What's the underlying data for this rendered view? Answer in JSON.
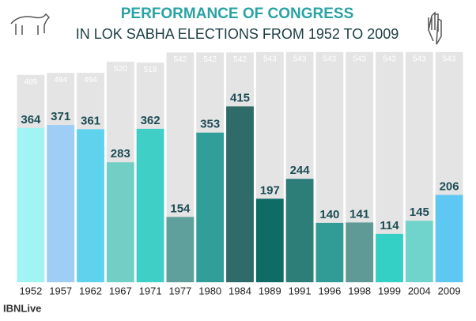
{
  "chart_data": {
    "type": "bar",
    "title": "PERFORMANCE OF CONGRESS",
    "subtitle": "IN LOK SABHA ELECTIONS FROM 1952 TO 2009",
    "categories": [
      "1952",
      "1957",
      "1962",
      "1967",
      "1971",
      "1977",
      "1980",
      "1984",
      "1989",
      "1991",
      "1996",
      "1998",
      "1999",
      "2004",
      "2009"
    ],
    "values": [
      364,
      371,
      361,
      283,
      362,
      154,
      353,
      415,
      197,
      244,
      140,
      141,
      114,
      145,
      206
    ],
    "totals": [
      489,
      494,
      494,
      520,
      518,
      542,
      542,
      542,
      543,
      543,
      543,
      543,
      543,
      543,
      543
    ],
    "colors": [
      "#a2f4f4",
      "#9ecdf6",
      "#5fd2ee",
      "#72cfc6",
      "#40cfc6",
      "#5f9f9c",
      "#319e9a",
      "#2f6c69",
      "#0f6b66",
      "#2d7d79",
      "#319b96",
      "#609a97",
      "#35d0c5",
      "#70d4cc",
      "#5fc8f2"
    ],
    "total_color": "#e4e4e4",
    "ylim": [
      0,
      580
    ],
    "logo": "IBNLive"
  }
}
